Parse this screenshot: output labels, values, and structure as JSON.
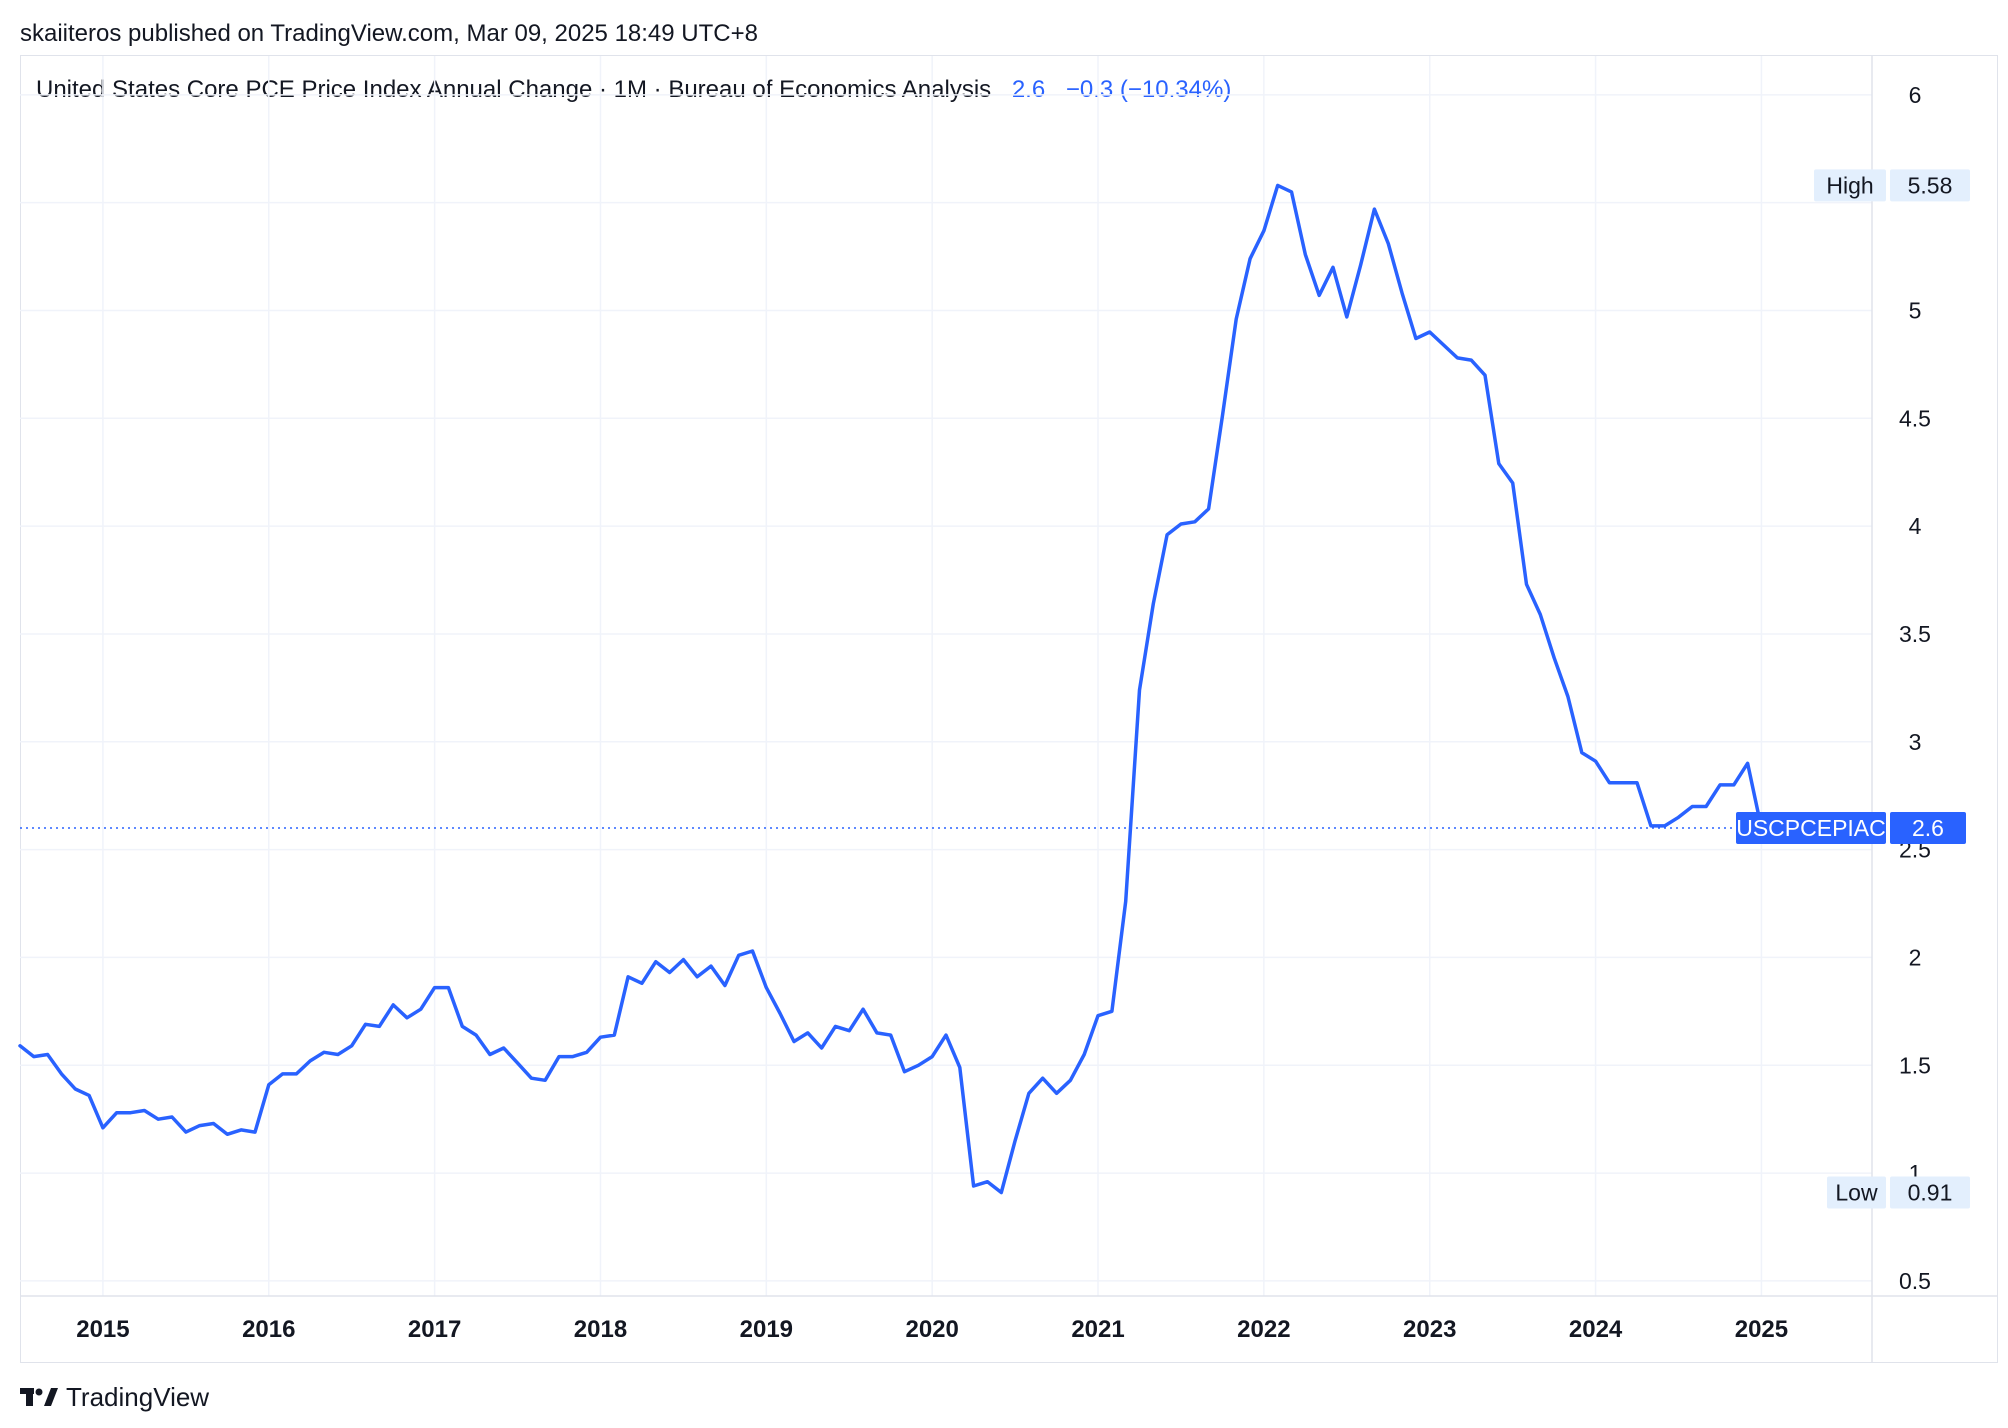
{
  "header": {
    "published": "skaiiteros published on TradingView.com, Mar 09, 2025 18:49 UTC+8"
  },
  "legend": {
    "title": "United States Core PCE Price Index Annual Change · 1M · Bureau of Economics Analysis",
    "last_value": "2.6",
    "change": "−0.3 (−10.34%)"
  },
  "footer": {
    "brand": "TradingView",
    "logo_icon": "tradingview-logo-icon"
  },
  "colors": {
    "line": "#2962ff",
    "grid": "#f0f3fa",
    "badge_bg": "#e3effd",
    "text": "#131722"
  },
  "chart_data": {
    "type": "line",
    "ylim": [
      0.5,
      6
    ],
    "yticks": [
      0.5,
      1,
      1.5,
      2,
      2.5,
      3,
      3.5,
      4,
      4.5,
      5,
      6
    ],
    "ygrid": [
      0.5,
      1,
      1.5,
      2,
      2.5,
      3,
      3.5,
      4,
      4.5,
      5,
      5.5,
      6
    ],
    "xlim": [
      "2014-07",
      "2025-09"
    ],
    "xticks": [
      "2015",
      "2016",
      "2017",
      "2018",
      "2019",
      "2020",
      "2021",
      "2022",
      "2023",
      "2024",
      "2025"
    ],
    "grid": true,
    "series": [
      {
        "name": "USCPCEPIAC",
        "x": [
          "2014-07",
          "2014-08",
          "2014-09",
          "2014-10",
          "2014-11",
          "2014-12",
          "2015-01",
          "2015-02",
          "2015-03",
          "2015-04",
          "2015-05",
          "2015-06",
          "2015-07",
          "2015-08",
          "2015-09",
          "2015-10",
          "2015-11",
          "2015-12",
          "2016-01",
          "2016-02",
          "2016-03",
          "2016-04",
          "2016-05",
          "2016-06",
          "2016-07",
          "2016-08",
          "2016-09",
          "2016-10",
          "2016-11",
          "2016-12",
          "2017-01",
          "2017-02",
          "2017-03",
          "2017-04",
          "2017-05",
          "2017-06",
          "2017-07",
          "2017-08",
          "2017-09",
          "2017-10",
          "2017-11",
          "2017-12",
          "2018-01",
          "2018-02",
          "2018-03",
          "2018-04",
          "2018-05",
          "2018-06",
          "2018-07",
          "2018-08",
          "2018-09",
          "2018-10",
          "2018-11",
          "2018-12",
          "2019-01",
          "2019-02",
          "2019-03",
          "2019-04",
          "2019-05",
          "2019-06",
          "2019-07",
          "2019-08",
          "2019-09",
          "2019-10",
          "2019-11",
          "2019-12",
          "2020-01",
          "2020-02",
          "2020-03",
          "2020-04",
          "2020-05",
          "2020-06",
          "2020-07",
          "2020-08",
          "2020-09",
          "2020-10",
          "2020-11",
          "2020-12",
          "2021-01",
          "2021-02",
          "2021-03",
          "2021-04",
          "2021-05",
          "2021-06",
          "2021-07",
          "2021-08",
          "2021-09",
          "2021-10",
          "2021-11",
          "2021-12",
          "2022-01",
          "2022-02",
          "2022-03",
          "2022-04",
          "2022-05",
          "2022-06",
          "2022-07",
          "2022-08",
          "2022-09",
          "2022-10",
          "2022-11",
          "2022-12",
          "2023-01",
          "2023-02",
          "2023-03",
          "2023-04",
          "2023-05",
          "2023-06",
          "2023-07",
          "2023-08",
          "2023-09",
          "2023-10",
          "2023-11",
          "2023-12",
          "2024-01",
          "2024-02",
          "2024-03",
          "2024-04",
          "2024-05",
          "2024-06",
          "2024-07",
          "2024-08",
          "2024-09",
          "2024-10",
          "2024-11",
          "2024-12",
          "2025-01"
        ],
        "values": [
          1.59,
          1.54,
          1.55,
          1.46,
          1.39,
          1.36,
          1.21,
          1.28,
          1.28,
          1.29,
          1.25,
          1.26,
          1.19,
          1.22,
          1.23,
          1.18,
          1.2,
          1.19,
          1.41,
          1.46,
          1.46,
          1.52,
          1.56,
          1.55,
          1.59,
          1.69,
          1.68,
          1.78,
          1.72,
          1.76,
          1.86,
          1.86,
          1.68,
          1.64,
          1.55,
          1.58,
          1.51,
          1.44,
          1.43,
          1.54,
          1.54,
          1.56,
          1.63,
          1.64,
          1.91,
          1.88,
          1.98,
          1.93,
          1.99,
          1.91,
          1.96,
          1.87,
          2.01,
          2.03,
          1.86,
          1.74,
          1.61,
          1.65,
          1.58,
          1.68,
          1.66,
          1.76,
          1.65,
          1.64,
          1.47,
          1.5,
          1.54,
          1.64,
          1.49,
          0.94,
          0.96,
          0.91,
          1.15,
          1.37,
          1.44,
          1.37,
          1.43,
          1.55,
          1.73,
          1.75,
          2.26,
          3.24,
          3.64,
          3.96,
          4.01,
          4.02,
          4.08,
          4.51,
          4.96,
          5.24,
          5.37,
          5.58,
          5.55,
          5.26,
          5.07,
          5.2,
          4.97,
          5.21,
          5.47,
          5.31,
          5.08,
          4.87,
          4.9,
          4.84,
          4.78,
          4.77,
          4.7,
          4.29,
          4.2,
          3.73,
          3.59,
          3.39,
          3.21,
          2.95,
          2.91,
          2.81,
          2.81,
          2.81,
          2.61,
          2.61,
          2.65,
          2.7,
          2.7,
          2.8,
          2.8,
          2.9,
          2.6
        ]
      }
    ],
    "markers": {
      "high": {
        "label": "High",
        "value": 5.58
      },
      "low": {
        "label": "Low",
        "value": 0.91
      },
      "last": {
        "label": "USCPCEPIAC",
        "value": 2.6
      }
    }
  }
}
